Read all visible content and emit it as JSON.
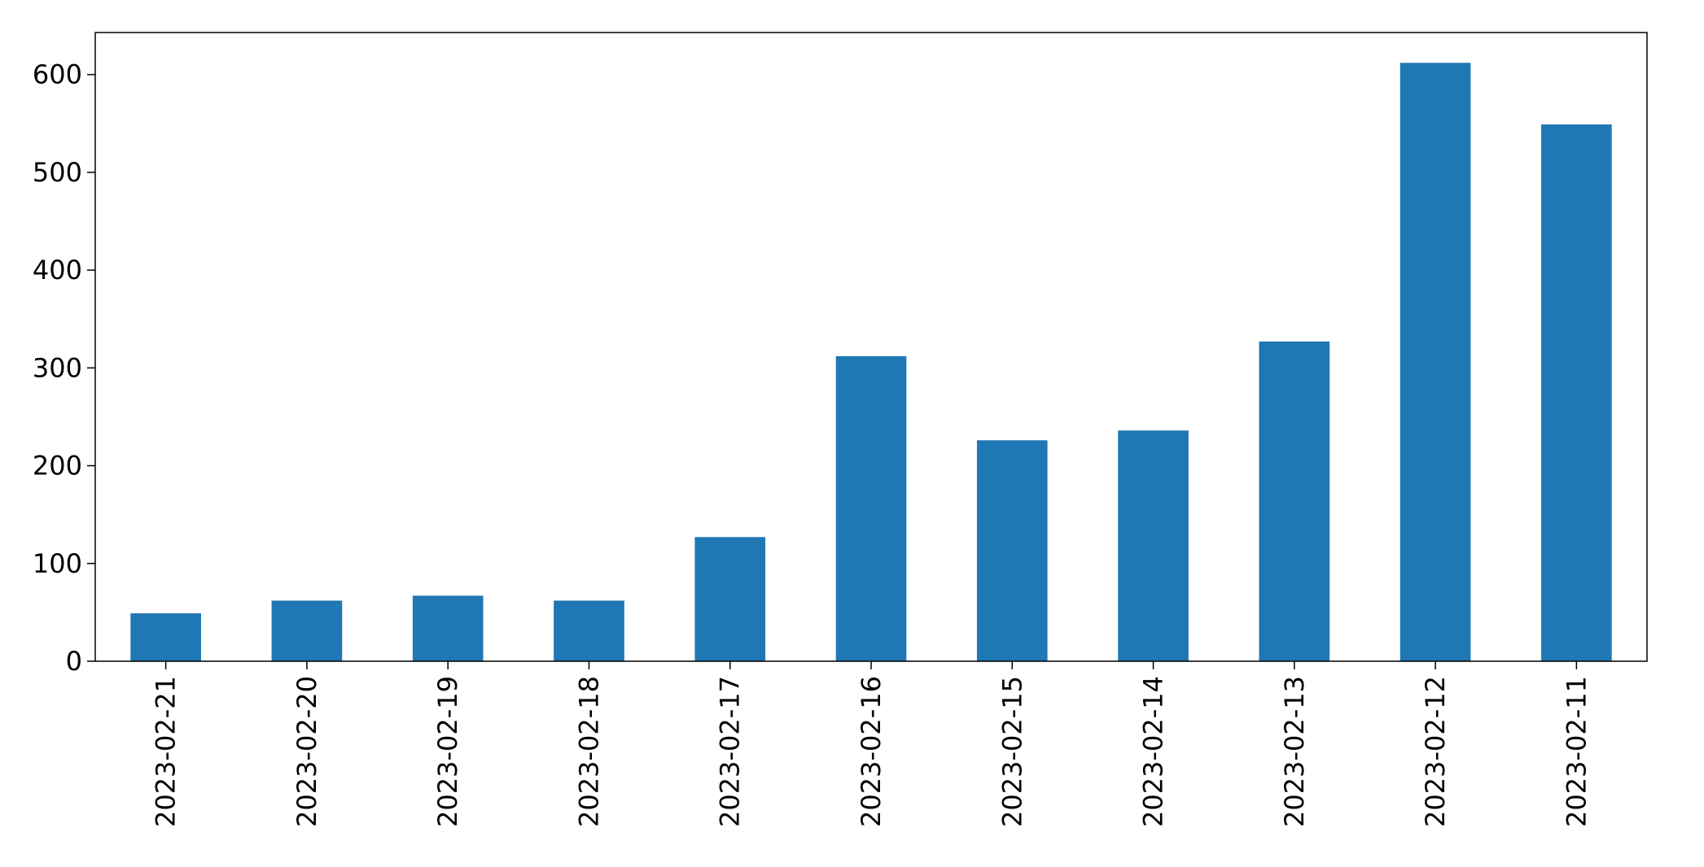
{
  "chart_data": {
    "type": "bar",
    "categories": [
      "2023-02-21",
      "2023-02-20",
      "2023-02-19",
      "2023-02-18",
      "2023-02-17",
      "2023-02-16",
      "2023-02-15",
      "2023-02-14",
      "2023-02-13",
      "2023-02-12",
      "2023-02-11"
    ],
    "values": [
      49,
      62,
      67,
      62,
      127,
      312,
      226,
      236,
      327,
      612,
      549
    ],
    "title": "",
    "xlabel": "",
    "ylabel": "",
    "ylim": [
      0,
      643
    ],
    "yticks": [
      0,
      100,
      200,
      300,
      400,
      500,
      600
    ],
    "grid": false,
    "legend": "none",
    "bar_color": "#1f77b4"
  }
}
